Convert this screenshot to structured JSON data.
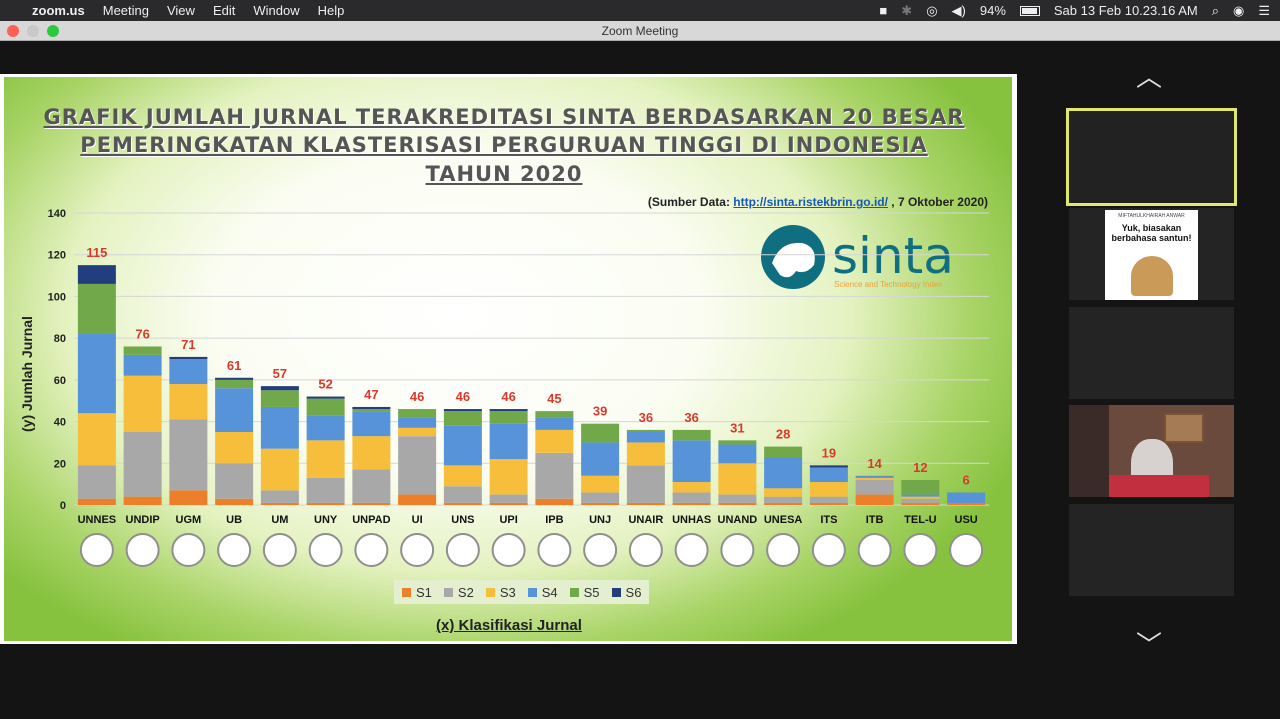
{
  "menubar": {
    "app": "zoom.us",
    "items": [
      "Meeting",
      "View",
      "Edit",
      "Window",
      "Help"
    ],
    "battery": "94%",
    "datetime": "Sab 13 Feb  10.23.16 AM"
  },
  "window": {
    "title": "Zoom Meeting"
  },
  "slide": {
    "title_line1": "GRAFIK JUMLAH JURNAL TERAKREDITASI SINTA BERDASARKAN 20 BESAR",
    "title_line2": "PEMERINGKATAN KLASTERISASI PERGURUAN TINGGI DI INDONESIA",
    "title_line3": "TAHUN 2020",
    "source_prefix": "(Sumber Data: ",
    "source_link": "http://sinta.ristekbrin.go.id/",
    "source_suffix": " , 7 Oktober 2020)",
    "logo_text": "sinta",
    "logo_tagline": "Science and Technology Index"
  },
  "chart_data": {
    "type": "bar",
    "stacked": true,
    "categories": [
      "UNNES",
      "UNDIP",
      "UGM",
      "UB",
      "UM",
      "UNY",
      "UNPAD",
      "UI",
      "UNS",
      "UPI",
      "IPB",
      "UNJ",
      "UNAIR",
      "UNHAS",
      "UNAND",
      "UNESA",
      "ITS",
      "ITB",
      "TEL-U",
      "USU"
    ],
    "totals": [
      115,
      76,
      71,
      61,
      57,
      52,
      47,
      46,
      46,
      46,
      45,
      39,
      36,
      36,
      31,
      28,
      19,
      14,
      12,
      6
    ],
    "series": [
      {
        "name": "S1",
        "color": "#ee7f2a",
        "values": [
          3,
          4,
          7,
          3,
          1,
          1,
          1,
          5,
          1,
          1,
          3,
          1,
          1,
          1,
          1,
          1,
          1,
          5,
          1,
          1
        ]
      },
      {
        "name": "S2",
        "color": "#a8a8a8",
        "values": [
          16,
          31,
          34,
          17,
          6,
          12,
          16,
          28,
          8,
          4,
          22,
          5,
          18,
          5,
          4,
          3,
          3,
          7,
          2,
          0
        ]
      },
      {
        "name": "S3",
        "color": "#f6be3a",
        "values": [
          25,
          27,
          17,
          15,
          20,
          18,
          16,
          4,
          10,
          17,
          11,
          8,
          11,
          5,
          15,
          4,
          7,
          1,
          1,
          0
        ]
      },
      {
        "name": "S4",
        "color": "#5693d8",
        "values": [
          38,
          10,
          12,
          21,
          20,
          12,
          12,
          5,
          19,
          17,
          6,
          16,
          5,
          20,
          9,
          15,
          7,
          1,
          1,
          5
        ]
      },
      {
        "name": "S5",
        "color": "#71a94a",
        "values": [
          24,
          4,
          0,
          4,
          8,
          8,
          1,
          4,
          7,
          6,
          3,
          9,
          1,
          5,
          2,
          5,
          0,
          0,
          7,
          0
        ]
      },
      {
        "name": "S6",
        "color": "#233e7c",
        "values": [
          9,
          0,
          1,
          1,
          2,
          1,
          1,
          0,
          1,
          1,
          0,
          0,
          0,
          0,
          0,
          0,
          1,
          0,
          0,
          0
        ]
      }
    ],
    "ylim": [
      0,
      140
    ],
    "yticks": [
      0,
      20,
      40,
      60,
      80,
      100,
      120,
      140
    ],
    "xlabel": "(x) Klasifikasi Jurnal",
    "ylabel": "(y) Jumlah Jurnal",
    "label_color": "#d93a2b",
    "grid": true,
    "legend_position": "bottom-center"
  },
  "gallery": {
    "poster_line1": "MIFTAHULKHAIRAH ANWAR",
    "poster_line2": "Yuk, biasakan",
    "poster_line3": "berbahasa santun!"
  }
}
